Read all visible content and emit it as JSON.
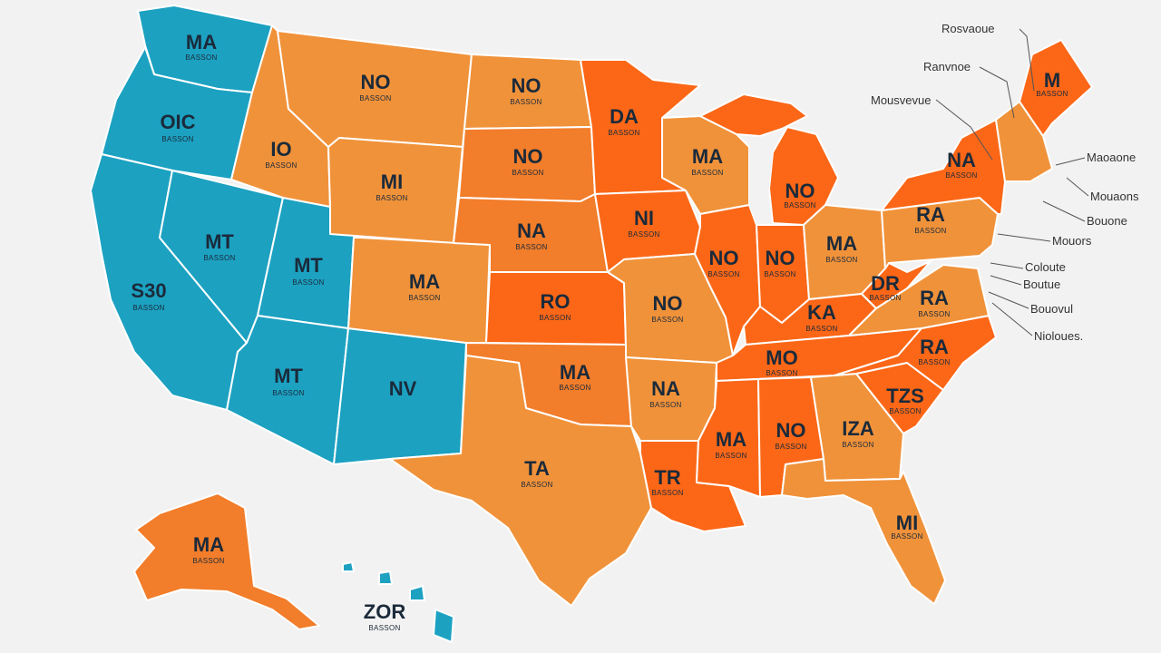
{
  "colors": {
    "teal": "#1ca1c1",
    "orange_light": "#f0923a",
    "orange": "#f27d2a",
    "orange_red": "#fb6717",
    "background": "#f2f2f2"
  },
  "states": [
    {
      "id": "wa",
      "abbr": "MA",
      "sub": "BASSON",
      "color": "teal"
    },
    {
      "id": "or",
      "abbr": "OIC",
      "sub": "BASSON",
      "color": "teal"
    },
    {
      "id": "ca",
      "abbr": "S30",
      "sub": "BASSON",
      "color": "teal"
    },
    {
      "id": "nv",
      "abbr": "MT",
      "sub": "BASSON",
      "color": "teal"
    },
    {
      "id": "ut",
      "abbr": "MT",
      "sub": "BASSON",
      "color": "teal"
    },
    {
      "id": "az",
      "abbr": "MT",
      "sub": "BASSON",
      "color": "teal"
    },
    {
      "id": "nm",
      "abbr": "NV",
      "sub": "",
      "color": "teal"
    },
    {
      "id": "id",
      "abbr": "IO",
      "sub": "BASSON",
      "color": "orange_light"
    },
    {
      "id": "mt",
      "abbr": "NO",
      "sub": "BASSON",
      "color": "orange_light"
    },
    {
      "id": "wy",
      "abbr": "MI",
      "sub": "BASSON",
      "color": "orange_light"
    },
    {
      "id": "co",
      "abbr": "MA",
      "sub": "BASSON",
      "color": "orange_light"
    },
    {
      "id": "nd",
      "abbr": "NO",
      "sub": "BASSON",
      "color": "orange_light"
    },
    {
      "id": "sd",
      "abbr": "NO",
      "sub": "BASSON",
      "color": "orange"
    },
    {
      "id": "ne",
      "abbr": "NA",
      "sub": "BASSON",
      "color": "orange"
    },
    {
      "id": "ks",
      "abbr": "RO",
      "sub": "BASSON",
      "color": "orange_red"
    },
    {
      "id": "ok",
      "abbr": "MA",
      "sub": "BASSON",
      "color": "orange"
    },
    {
      "id": "tx",
      "abbr": "TA",
      "sub": "BASSON",
      "color": "orange_light"
    },
    {
      "id": "mn",
      "abbr": "DA",
      "sub": "BASSON",
      "color": "orange_red"
    },
    {
      "id": "ia",
      "abbr": "NI",
      "sub": "BASSON",
      "color": "orange_red"
    },
    {
      "id": "mo",
      "abbr": "NO",
      "sub": "BASSON",
      "color": "orange_light"
    },
    {
      "id": "ar",
      "abbr": "NA",
      "sub": "BASSON",
      "color": "orange_light"
    },
    {
      "id": "la",
      "abbr": "TR",
      "sub": "BASSON",
      "color": "orange_red"
    },
    {
      "id": "wi",
      "abbr": "MA",
      "sub": "BASSON",
      "color": "orange_light"
    },
    {
      "id": "il",
      "abbr": "NO",
      "sub": "BASSON",
      "color": "orange_red"
    },
    {
      "id": "mi",
      "abbr": "NO",
      "sub": "BASSON",
      "color": "orange_red"
    },
    {
      "id": "in",
      "abbr": "NO",
      "sub": "BASSON",
      "color": "orange_red"
    },
    {
      "id": "oh",
      "abbr": "MA",
      "sub": "BASSON",
      "color": "orange_light"
    },
    {
      "id": "ky",
      "abbr": "KA",
      "sub": "BASSON",
      "color": "orange_red"
    },
    {
      "id": "tn",
      "abbr": "MO",
      "sub": "BASSON",
      "color": "orange_red"
    },
    {
      "id": "ms",
      "abbr": "MA",
      "sub": "BASSON",
      "color": "orange_red"
    },
    {
      "id": "al",
      "abbr": "NO",
      "sub": "BASSON",
      "color": "orange_red"
    },
    {
      "id": "ga",
      "abbr": "IZA",
      "sub": "BASSON",
      "color": "orange_light"
    },
    {
      "id": "fl",
      "abbr": "MI",
      "sub": "BASSON",
      "color": "orange_light"
    },
    {
      "id": "sc",
      "abbr": "TZS",
      "sub": "BASSON",
      "color": "orange_red"
    },
    {
      "id": "nc",
      "abbr": "RA",
      "sub": "BASSON",
      "color": "orange_red"
    },
    {
      "id": "va",
      "abbr": "RA",
      "sub": "BASSON",
      "color": "orange_light"
    },
    {
      "id": "wv",
      "abbr": "DR",
      "sub": "BASSON",
      "color": "orange_red"
    },
    {
      "id": "pa",
      "abbr": "RA",
      "sub": "BASSON",
      "color": "orange_light"
    },
    {
      "id": "ny",
      "abbr": "NA",
      "sub": "BASSON",
      "color": "orange_red"
    },
    {
      "id": "ne_states",
      "abbr": "",
      "sub": "",
      "color": "orange_light"
    },
    {
      "id": "me",
      "abbr": "M",
      "sub": "BASSON",
      "color": "orange_red"
    },
    {
      "id": "ak",
      "abbr": "MA",
      "sub": "BASSON",
      "color": "orange"
    },
    {
      "id": "hi",
      "abbr": "ZOR",
      "sub": "BASSON",
      "color": "teal"
    }
  ],
  "callouts": [
    {
      "id": "c1",
      "text": "Rosvaoue"
    },
    {
      "id": "c2",
      "text": "Ranvnoe"
    },
    {
      "id": "c3",
      "text": "Mousvevue"
    },
    {
      "id": "c4",
      "text": "Maoaone"
    },
    {
      "id": "c5",
      "text": "Mouaons"
    },
    {
      "id": "c6",
      "text": "Bouone"
    },
    {
      "id": "c7",
      "text": "Mouors"
    },
    {
      "id": "c8",
      "text": "Coloute"
    },
    {
      "id": "c9",
      "text": "Boutue"
    },
    {
      "id": "c10",
      "text": "Bouovul"
    },
    {
      "id": "c11",
      "text": "Nioloues."
    }
  ]
}
